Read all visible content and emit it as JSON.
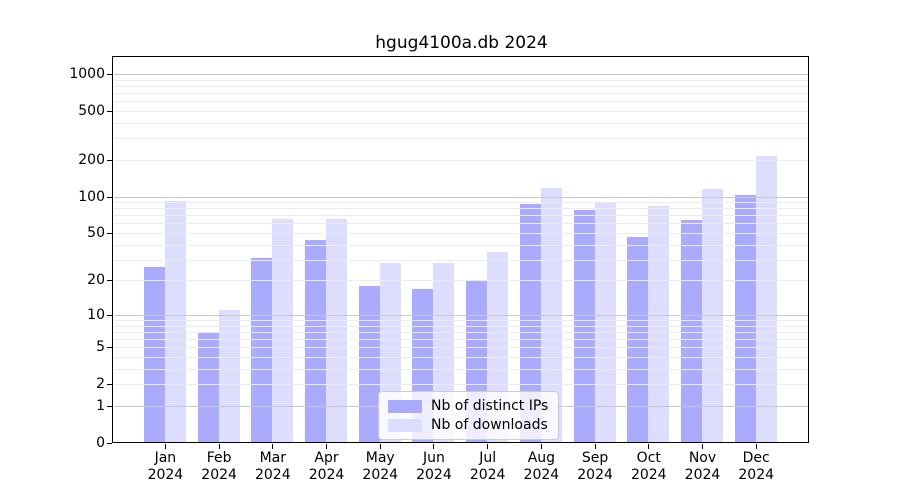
{
  "chart_data": {
    "type": "bar",
    "title": "hgug4100a.db 2024",
    "categories": [
      "Jan",
      "Feb",
      "Mar",
      "Apr",
      "May",
      "Jun",
      "Jul",
      "Aug",
      "Sep",
      "Oct",
      "Nov",
      "Dec"
    ],
    "x_tick_year_line": "2024",
    "series": [
      {
        "name": "Nb of distinct IPs",
        "color": "#aaaaff",
        "values": [
          26,
          7,
          31,
          44,
          18,
          17,
          20,
          87,
          78,
          46,
          64,
          103
        ]
      },
      {
        "name": "Nb of downloads",
        "color": "#ddddff",
        "values": [
          91,
          11,
          65,
          65,
          28,
          28,
          35,
          118,
          89,
          84,
          115,
          215
        ]
      }
    ],
    "y_scale": "log1p",
    "y_ticks": [
      0,
      1,
      2,
      5,
      10,
      20,
      50,
      100,
      200,
      500,
      1000
    ],
    "ylim": [
      0,
      1373
    ],
    "grid": true,
    "legend_position": "lower-center"
  },
  "colors": {
    "background": "#ffffff",
    "spine": "#000000",
    "major_gridline": "#c8c8c8",
    "minor_gridline": "#ececec",
    "text": "#000000"
  }
}
